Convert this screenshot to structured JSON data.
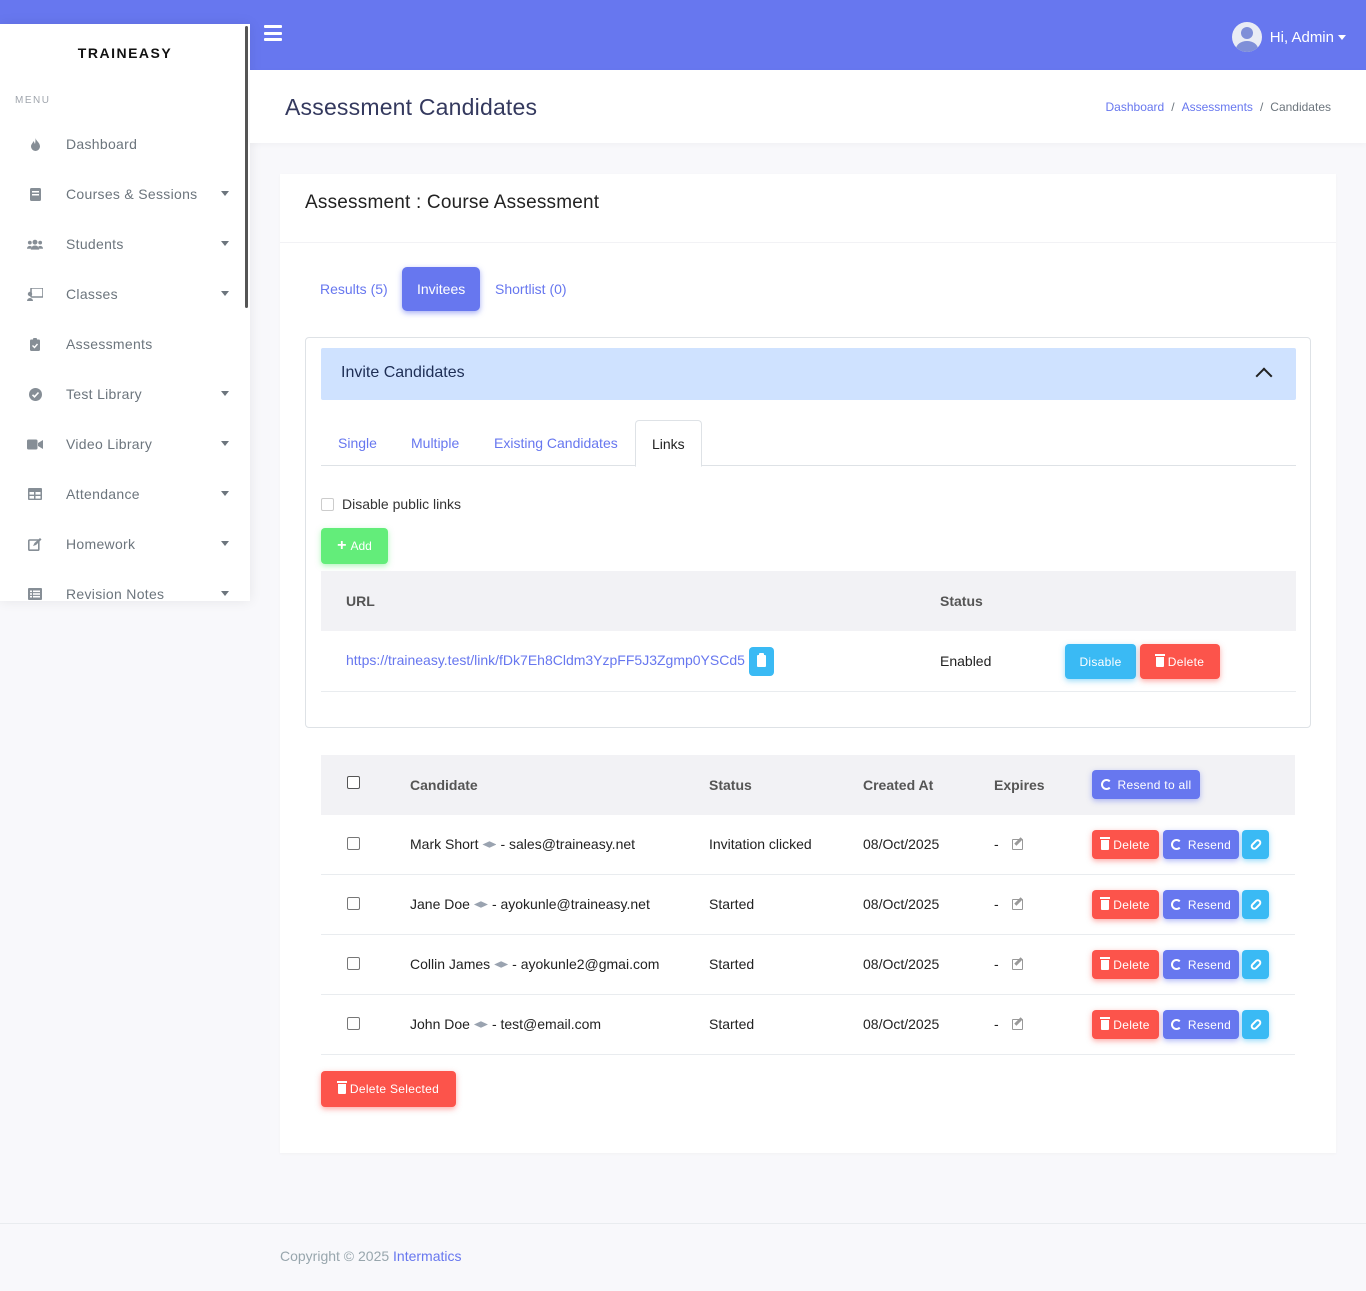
{
  "header": {
    "greeting": "Hi, Admin"
  },
  "sidebar": {
    "brand": "TRAINEASY",
    "menu_label": "MENU",
    "items": [
      {
        "label": "Dashboard",
        "icon": "fire-icon",
        "dropdown": false
      },
      {
        "label": "Courses & Sessions",
        "icon": "book-icon",
        "dropdown": true
      },
      {
        "label": "Students",
        "icon": "users-icon",
        "dropdown": true
      },
      {
        "label": "Classes",
        "icon": "chalkboard-teacher-icon",
        "dropdown": true
      },
      {
        "label": "Assessments",
        "icon": "clipboard-check-icon",
        "dropdown": false
      },
      {
        "label": "Test Library",
        "icon": "check-circle-icon",
        "dropdown": true
      },
      {
        "label": "Video Library",
        "icon": "video-icon",
        "dropdown": true
      },
      {
        "label": "Attendance",
        "icon": "table-icon",
        "dropdown": true
      },
      {
        "label": "Homework",
        "icon": "edit-icon",
        "dropdown": true
      },
      {
        "label": "Revision Notes",
        "icon": "list-alt-icon",
        "dropdown": true
      }
    ]
  },
  "page": {
    "title": "Assessment Candidates",
    "breadcrumb": [
      "Dashboard",
      "Assessments",
      "Candidates"
    ]
  },
  "card": {
    "title": "Assessment : Course Assessment",
    "tabs": [
      "Results (5)",
      "Invitees",
      "Shortlist (0)"
    ],
    "active_tab": "Invitees"
  },
  "invite": {
    "title": "Invite Candidates",
    "subtabs": [
      "Single",
      "Multiple",
      "Existing Candidates",
      "Links"
    ],
    "active_subtab": "Links",
    "disable_label": "Disable public links",
    "add_label": "Add",
    "table_headers": [
      "URL",
      "Status"
    ],
    "link": {
      "url": "https://traineasy.test/link/fDk7Eh8Cldm3YzpFF5J3Zgmp0YSCd5",
      "status": "Enabled",
      "disable_label": "Disable",
      "delete_label": "Delete"
    }
  },
  "candidates": {
    "headers": [
      "Candidate",
      "Status",
      "Created At",
      "Expires"
    ],
    "resend_all_label": "Resend to all",
    "delete_label": "Delete",
    "resend_label": "Resend",
    "rows": [
      {
        "name": "Mark Short",
        "email": "- sales@traineasy.net",
        "status": "Invitation clicked",
        "created": "08/Oct/2025",
        "expires": "-"
      },
      {
        "name": "Jane Doe",
        "email": "- ayokunle@traineasy.net",
        "status": "Started",
        "created": "08/Oct/2025",
        "expires": "-"
      },
      {
        "name": "Collin James",
        "email": "- ayokunle2@gmai.com",
        "status": "Started",
        "created": "08/Oct/2025",
        "expires": "-"
      },
      {
        "name": "John Doe",
        "email": "- test@email.com",
        "status": "Started",
        "created": "08/Oct/2025",
        "expires": "-"
      }
    ],
    "delete_selected_label": "Delete Selected"
  },
  "footer": {
    "text": "Copyright © 2025",
    "link": "Intermatics"
  },
  "colors": {
    "primary": "#6777ef",
    "success": "#63ed7a",
    "danger": "#fc544b",
    "info": "#3abaf4",
    "accordion": "#cfe2ff"
  }
}
